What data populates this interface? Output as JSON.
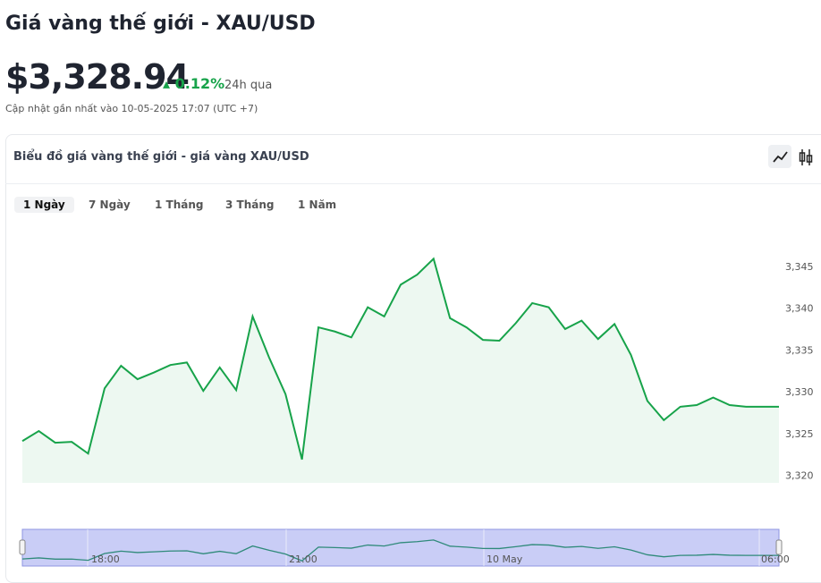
{
  "header": {
    "title": "Giá vàng thế giới - XAU/USD",
    "price": "$3,328.94",
    "change": "0.12%",
    "change_period": "24h qua",
    "updated": "Cập nhật gần nhất vào 10-05-2025 17:07 (UTC +7)"
  },
  "tabs": {
    "items": [
      "1 Ngày",
      "7 Ngày",
      "1 Tháng",
      "3 Tháng",
      "1 Năm"
    ],
    "active": 0
  },
  "chart_data": {
    "type": "line",
    "title": "Biểu đồ giá vàng thế giới - giá vàng XAU/USD",
    "categories": [
      null,
      null,
      null,
      null,
      null,
      null,
      null,
      null,
      null,
      null,
      null,
      null,
      null,
      null,
      null,
      null,
      null,
      null,
      null,
      null,
      null,
      null,
      null,
      null,
      null,
      null,
      null,
      null,
      null,
      null,
      null,
      null,
      null,
      null,
      null,
      null,
      null,
      null,
      null,
      null,
      null,
      null,
      null,
      null,
      null,
      null,
      null
    ],
    "series": [
      {
        "color": "#17a34a",
        "values": [
          3324.2,
          3325.4,
          3324.0,
          3324.1,
          3322.7,
          3330.5,
          3333.2,
          3331.6,
          3332.4,
          3333.3,
          3333.6,
          3330.2,
          3333.0,
          3330.3,
          3339.1,
          3334.2,
          3329.8,
          3322.0,
          3337.8,
          3337.3,
          3336.6,
          3340.2,
          3339.1,
          3342.9,
          3344.1,
          3346.0,
          3338.9,
          3337.8,
          3336.3,
          3336.2,
          3338.3,
          3340.7,
          3340.2,
          3337.6,
          3338.6,
          3336.4,
          3338.2,
          3334.5,
          3329.0,
          3326.7,
          3328.3,
          3328.5,
          3329.4,
          3328.5,
          3328.3,
          3328.3,
          3328.3
        ]
      }
    ],
    "ylim": [
      3319.2,
      3350
    ],
    "yticks": [
      {
        "value": 3320,
        "label": "3,320"
      },
      {
        "value": 3325,
        "label": "3,325"
      },
      {
        "value": 3330,
        "label": "3,330"
      },
      {
        "value": 3335,
        "label": "3,335"
      },
      {
        "value": 3340,
        "label": "3,340"
      },
      {
        "value": 3345,
        "label": "3,345"
      }
    ],
    "navigator_labels": [
      "18:00",
      "21:00",
      "10 May",
      "06:00"
    ]
  }
}
